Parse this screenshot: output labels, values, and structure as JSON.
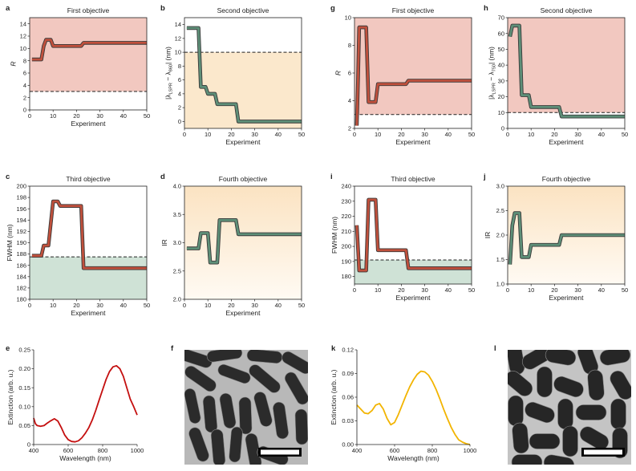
{
  "colors": {
    "red_fill": "#f2c8c0",
    "yellow_fill": "#fbe8cc",
    "green_fill": "#cfe2d6",
    "red_line": "#c0503c",
    "green_line": "#5e8f78",
    "spectrum_red": "#c40f0f",
    "spectrum_yellow": "#f2b400"
  },
  "chart_data": [
    {
      "letter": "a",
      "type": "line",
      "title": "First objective",
      "xlabel": "Experiment",
      "ylabel": "R",
      "xlim": [
        0,
        50
      ],
      "ylim": [
        0,
        15
      ],
      "xticks": [
        0,
        10,
        20,
        30,
        40,
        50
      ],
      "yticks": [
        0,
        2,
        4,
        6,
        8,
        10,
        12,
        14
      ],
      "threshold": 3,
      "shade": "red",
      "shade_side": "above",
      "line_color": "red",
      "x": [
        1,
        4,
        5,
        6,
        7,
        8,
        9,
        10,
        11,
        14,
        18,
        21,
        22,
        23,
        26,
        30,
        40,
        50
      ],
      "y": [
        8.2,
        8.2,
        8.2,
        10.4,
        11.4,
        11.4,
        11.4,
        10.4,
        10.4,
        10.4,
        10.4,
        10.4,
        10.4,
        10.9,
        10.9,
        10.9,
        10.9,
        10.9
      ]
    },
    {
      "letter": "b",
      "type": "line",
      "title": "Second objective",
      "xlabel": "Experiment",
      "ylabel": "|λLSPR − λ860| (nm)",
      "ylabel_prefix": "|λ",
      "ylabel_sub1": "LSPR",
      "ylabel_mid": " − λ",
      "ylabel_sub2": "860",
      "ylabel_suffix": "| (nm)",
      "xlim": [
        0,
        50
      ],
      "ylim": [
        -1,
        15
      ],
      "xticks": [
        0,
        10,
        20,
        30,
        40,
        50
      ],
      "yticks": [
        0,
        2,
        4,
        6,
        8,
        10,
        12,
        14
      ],
      "threshold": 10,
      "shade": "yellow",
      "shade_side": "below",
      "line_color": "green",
      "x": [
        1,
        4,
        6,
        7,
        9,
        10,
        11,
        13,
        14,
        15,
        22,
        23,
        25,
        30,
        40,
        50
      ],
      "y": [
        13.5,
        13.5,
        13.5,
        5,
        5,
        4,
        4,
        4,
        2.5,
        2.5,
        2.5,
        0,
        0,
        0,
        0,
        0
      ]
    },
    {
      "letter": "g",
      "type": "line",
      "title": "First objective",
      "xlabel": "Experiment",
      "ylabel": "R",
      "xlim": [
        0,
        50
      ],
      "ylim": [
        2,
        10
      ],
      "xticks": [
        0,
        10,
        20,
        30,
        40,
        50
      ],
      "yticks": [
        2,
        4,
        6,
        8,
        10
      ],
      "threshold": 3,
      "shade": "red",
      "shade_side": "above",
      "line_color": "red",
      "x": [
        1,
        1.5,
        2,
        3,
        4,
        5,
        6,
        7,
        8,
        9,
        10,
        11,
        14,
        20,
        22,
        23,
        30,
        40,
        50
      ],
      "y": [
        2.2,
        5.5,
        9.3,
        9.3,
        9.3,
        9.3,
        3.9,
        3.9,
        3.9,
        3.9,
        5.2,
        5.2,
        5.2,
        5.2,
        5.2,
        5.45,
        5.45,
        5.45,
        5.45
      ]
    },
    {
      "letter": "h",
      "type": "line",
      "title": "Second objective",
      "xlabel": "Experiment",
      "ylabel": "|λLSPR − λ750| (nm)",
      "ylabel_prefix": "|λ",
      "ylabel_sub1": "LSPR",
      "ylabel_mid": " − λ",
      "ylabel_sub2": "750",
      "ylabel_suffix": "| (nm)",
      "xlim": [
        0,
        50
      ],
      "ylim": [
        0,
        70
      ],
      "xticks": [
        0,
        10,
        20,
        30,
        40,
        50
      ],
      "yticks": [
        0,
        10,
        20,
        30,
        40,
        50,
        60,
        70
      ],
      "threshold": 10,
      "shade": "red",
      "shade_side": "above",
      "line_color": "green",
      "x": [
        1,
        2,
        3,
        4,
        5,
        6,
        7,
        9,
        10,
        11,
        15,
        20,
        22,
        23,
        30,
        40,
        50
      ],
      "y": [
        58,
        65,
        65,
        65,
        65,
        21,
        21,
        21,
        13.5,
        13.5,
        13.5,
        13.5,
        13.5,
        7.5,
        7.5,
        7.5,
        7.5
      ]
    },
    {
      "letter": "c",
      "type": "line",
      "title": "Third objective",
      "xlabel": "Experiment",
      "ylabel": "FWHM (nm)",
      "xlim": [
        0,
        50
      ],
      "ylim": [
        180,
        200
      ],
      "xticks": [
        0,
        10,
        20,
        30,
        40,
        50
      ],
      "yticks": [
        180,
        182,
        184,
        186,
        188,
        190,
        192,
        194,
        196,
        198,
        200
      ],
      "threshold": 187.5,
      "shade": "green",
      "shade_side": "below",
      "line_color": "red",
      "x": [
        1,
        3,
        5,
        6,
        7,
        8,
        10,
        11,
        12,
        13,
        14,
        17,
        20,
        22,
        23,
        30,
        40,
        50
      ],
      "y": [
        187.7,
        187.7,
        187.7,
        189.5,
        189.5,
        189.5,
        197.3,
        197.3,
        197.3,
        196.5,
        196.5,
        196.5,
        196.5,
        196.5,
        185.5,
        185.5,
        185.5,
        185.5
      ]
    },
    {
      "letter": "d",
      "type": "line",
      "title": "Fourth objective",
      "xlabel": "Experiment",
      "ylabel": "IR",
      "xlim": [
        0,
        50
      ],
      "ylim": [
        2,
        4
      ],
      "xticks": [
        0,
        10,
        20,
        30,
        40,
        50
      ],
      "yticks": [
        2,
        2.5,
        3,
        3.5,
        4
      ],
      "yticklabels": [
        "2.0",
        "2.5",
        "3.0",
        "3.5",
        "4.0"
      ],
      "threshold": null,
      "shade": "yellow_gradient",
      "shade_side": "all",
      "line_color": "green",
      "x": [
        1,
        4,
        6,
        7,
        9,
        10,
        11,
        13,
        14,
        15,
        17,
        20,
        22,
        23,
        25,
        30,
        40,
        50
      ],
      "y": [
        2.9,
        2.9,
        2.9,
        3.17,
        3.17,
        3.17,
        2.65,
        2.65,
        2.65,
        3.4,
        3.4,
        3.4,
        3.4,
        3.15,
        3.15,
        3.15,
        3.15,
        3.15
      ]
    },
    {
      "letter": "i",
      "type": "line",
      "title": "Third objective",
      "xlabel": "Experiment",
      "ylabel": "FWHM (nm)",
      "xlim": [
        0,
        50
      ],
      "ylim": [
        175,
        240
      ],
      "xticks": [
        0,
        10,
        20,
        30,
        40,
        50
      ],
      "yticks": [
        180,
        190,
        200,
        210,
        220,
        230,
        240
      ],
      "threshold": 191,
      "shade": "green",
      "shade_side": "below",
      "line_color": "red",
      "x": [
        1,
        2,
        3,
        4,
        5,
        6,
        7,
        9,
        10,
        11,
        15,
        20,
        22,
        23,
        30,
        40,
        50
      ],
      "y": [
        214,
        184,
        184,
        184,
        184,
        231,
        231,
        231,
        197.5,
        197.5,
        197.5,
        197.5,
        197.5,
        185.5,
        185.5,
        185.5,
        185.5
      ]
    },
    {
      "letter": "j",
      "type": "line",
      "title": "Fourth objective",
      "xlabel": "Experiment",
      "ylabel": "IR",
      "xlim": [
        0,
        50
      ],
      "ylim": [
        1,
        3
      ],
      "xticks": [
        0,
        10,
        20,
        30,
        40,
        50
      ],
      "yticks": [
        1,
        1.5,
        2,
        2.5,
        3
      ],
      "yticklabels": [
        "1.0",
        "1.5",
        "2.0",
        "2.5",
        "3.0"
      ],
      "threshold": null,
      "shade": "yellow_gradient",
      "shade_side": "all",
      "line_color": "green",
      "x": [
        1,
        2,
        3,
        4,
        5,
        6,
        7,
        9,
        10,
        11,
        15,
        20,
        22,
        23,
        30,
        40,
        50
      ],
      "y": [
        1.4,
        2.2,
        2.45,
        2.45,
        2.45,
        1.55,
        1.55,
        1.55,
        1.8,
        1.8,
        1.8,
        1.8,
        1.8,
        2.0,
        2.0,
        2.0,
        2.0
      ]
    },
    {
      "letter": "e",
      "type": "line",
      "title": "",
      "xlabel": "Wavelength (nm)",
      "ylabel": "Extinction (arb. u.)",
      "xlim": [
        400,
        1000
      ],
      "ylim": [
        0,
        0.25
      ],
      "xticks": [
        400,
        600,
        800,
        1000
      ],
      "yticks": [
        0,
        0.05,
        0.1,
        0.15,
        0.2,
        0.25
      ],
      "yticklabels": [
        "0",
        "0.05",
        "0.10",
        "0.15",
        "0.20",
        "0.25"
      ],
      "threshold": null,
      "shade": "none",
      "line_color": "spectrum_red",
      "x": [
        400,
        410,
        420,
        440,
        460,
        480,
        500,
        520,
        540,
        560,
        580,
        600,
        620,
        640,
        660,
        680,
        700,
        720,
        740,
        760,
        780,
        800,
        820,
        840,
        860,
        880,
        900,
        920,
        940,
        960,
        980,
        1000
      ],
      "y": [
        0.07,
        0.055,
        0.05,
        0.048,
        0.05,
        0.057,
        0.063,
        0.068,
        0.062,
        0.045,
        0.025,
        0.013,
        0.008,
        0.007,
        0.01,
        0.018,
        0.03,
        0.045,
        0.065,
        0.09,
        0.118,
        0.145,
        0.172,
        0.193,
        0.205,
        0.208,
        0.2,
        0.18,
        0.15,
        0.12,
        0.1,
        0.078
      ]
    },
    {
      "letter": "k",
      "type": "line",
      "title": "",
      "xlabel": "Wavelength (nm)",
      "ylabel": "Extinction (arb. u.)",
      "xlim": [
        400,
        1000
      ],
      "ylim": [
        0,
        0.12
      ],
      "xticks": [
        400,
        600,
        800,
        1000
      ],
      "yticks": [
        0,
        0.03,
        0.06,
        0.09,
        0.12
      ],
      "yticklabels": [
        "0.00",
        "0.03",
        "0.06",
        "0.09",
        "0.12"
      ],
      "threshold": null,
      "shade": "none",
      "line_color": "spectrum_yellow",
      "x": [
        400,
        420,
        440,
        460,
        480,
        500,
        520,
        540,
        560,
        580,
        600,
        620,
        640,
        660,
        680,
        700,
        720,
        740,
        760,
        780,
        800,
        820,
        840,
        860,
        880,
        900,
        920,
        940,
        960,
        980,
        1000
      ],
      "y": [
        0.05,
        0.045,
        0.04,
        0.039,
        0.043,
        0.05,
        0.052,
        0.045,
        0.033,
        0.025,
        0.028,
        0.038,
        0.05,
        0.062,
        0.073,
        0.082,
        0.089,
        0.093,
        0.092,
        0.088,
        0.08,
        0.07,
        0.058,
        0.045,
        0.033,
        0.022,
        0.013,
        0.006,
        0.003,
        0.001,
        0.0
      ]
    }
  ],
  "micrographs": [
    {
      "letter": "f",
      "description": "nanorod image",
      "scale_bar": true
    },
    {
      "letter": "l",
      "description": "nanorod image",
      "scale_bar": true
    }
  ]
}
